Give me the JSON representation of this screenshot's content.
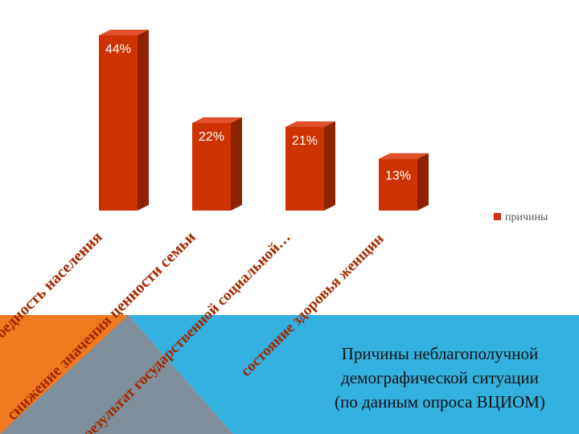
{
  "theme": {
    "bar_color": "#cc3300",
    "bar_side_color": "#8f2200",
    "bar_top_color": "#e0502a",
    "label_color": "#a32a00",
    "blue_band": "#33b0e0",
    "orange_band": "#f07a20",
    "grey_band": "#7e8e9a"
  },
  "caption": {
    "line1": "Причины неблагополучной",
    "line2": "демографической ситуации",
    "line3": "(по данным опроса ВЦИОМ)"
  },
  "chart_data": {
    "type": "bar",
    "style": "3d-column",
    "categories": [
      "бедность населения",
      "снижение значения ценности семьи",
      "результат государственной социальной…",
      "состояние здоровья женщин"
    ],
    "series": [
      {
        "name": "причины",
        "values": [
          44,
          22,
          21,
          13
        ],
        "color": "#cc3300"
      }
    ],
    "data_labels": [
      "44%",
      "22%",
      "21%",
      "13%"
    ],
    "ylim": [
      0,
      44
    ],
    "grid": false,
    "legend": {
      "position": "right",
      "entries": [
        "причины"
      ]
    }
  }
}
